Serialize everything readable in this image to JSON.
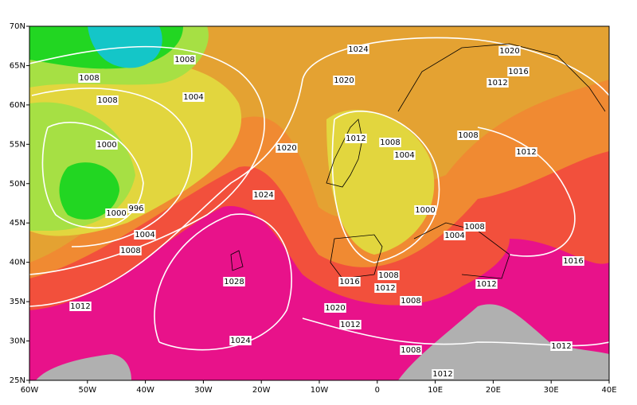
{
  "map": {
    "lon_labels": [
      "60W",
      "50W",
      "40W",
      "30W",
      "20W",
      "10W",
      "0",
      "10E",
      "20E",
      "30E",
      "40E"
    ],
    "lat_labels": [
      "70N",
      "65N",
      "60N",
      "55N",
      "50N",
      "45N",
      "40N",
      "35N",
      "30N",
      "25N"
    ],
    "isobar_labels": [
      "1008",
      "1008",
      "1008",
      "1024",
      "1020",
      "1016",
      "1012",
      "1020",
      "1004",
      "1000",
      "1020",
      "1012",
      "1008",
      "1004",
      "1008",
      "1012",
      "1024",
      "996",
      "1000",
      "1000",
      "1004",
      "1008",
      "1004",
      "1008",
      "1016",
      "1028",
      "1016",
      "1008",
      "1012",
      "1012",
      "1012",
      "1008",
      "1020",
      "1012",
      "1024",
      "1008",
      "1012",
      "1012"
    ]
  }
}
